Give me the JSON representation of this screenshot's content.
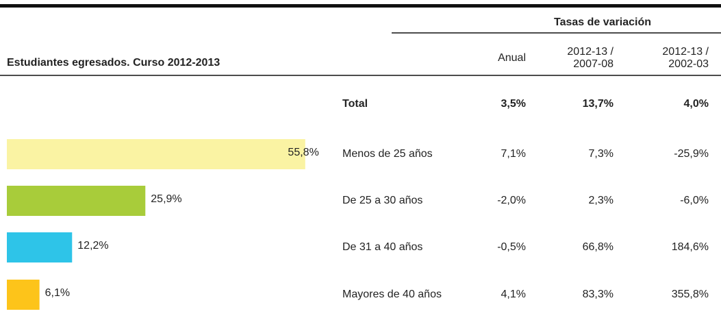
{
  "chart_data": {
    "type": "bar",
    "orientation": "horizontal",
    "categories": [
      "Menos de 25 años",
      "De 25 a 30 años",
      "De 31 a 40 años",
      "Mayores de 40 años"
    ],
    "values": [
      55.8,
      25.9,
      12.2,
      6.1
    ],
    "value_labels": [
      "55,8%",
      "25,9%",
      "12,2%",
      "6,1%"
    ],
    "colors": [
      "#faf3a3",
      "#a8cc3a",
      "#2ec4e8",
      "#fdc41a"
    ]
  },
  "table": {
    "title": "Estudiantes egresados. Curso 2012-2013",
    "group_header": "Tasas de variación",
    "headers": [
      [
        "Anual"
      ],
      [
        "2012-13 /",
        "2007-08"
      ],
      [
        "2012-13 /",
        "2002-03"
      ]
    ],
    "total": {
      "label": "Total",
      "cells": [
        "3,5%",
        "13,7%",
        "4,0%"
      ]
    },
    "rows": [
      [
        "7,1%",
        "7,3%",
        "-25,9%"
      ],
      [
        "-2,0%",
        "2,3%",
        "-6,0%"
      ],
      [
        "-0,5%",
        "66,8%",
        "184,6%"
      ],
      [
        "4,1%",
        "83,3%",
        "355,8%"
      ]
    ]
  }
}
